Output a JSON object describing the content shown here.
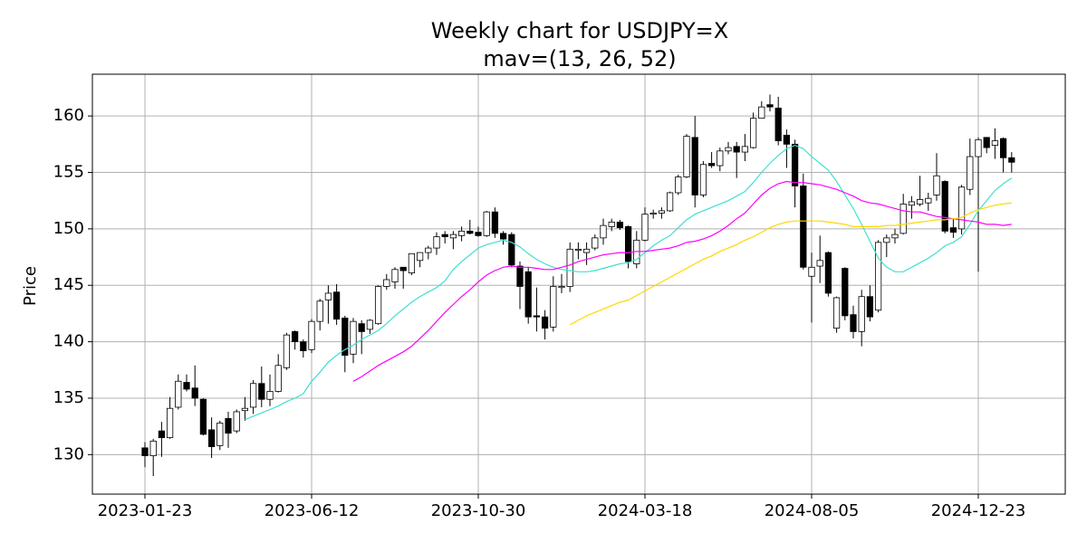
{
  "chart_data": {
    "type": "candlestick",
    "title": "Weekly chart for USDJPY=X",
    "subtitle": "mav=(13, 26, 52)",
    "y_label": "Price",
    "grid": true,
    "ylim": [
      126.5,
      163.7
    ],
    "yticks": [
      130,
      135,
      140,
      145,
      150,
      155,
      160
    ],
    "up_color": "#ffffff",
    "down_color": "#000000",
    "edge_color": "#000000",
    "categories": [
      "2023-01-23",
      null,
      null,
      null,
      null,
      null,
      null,
      null,
      null,
      null,
      null,
      null,
      null,
      null,
      null,
      null,
      null,
      null,
      null,
      null,
      "2023-06-12",
      null,
      null,
      null,
      null,
      null,
      null,
      null,
      null,
      null,
      null,
      null,
      null,
      null,
      null,
      null,
      null,
      null,
      null,
      null,
      "2023-10-30",
      null,
      null,
      null,
      null,
      null,
      null,
      null,
      null,
      null,
      null,
      null,
      null,
      null,
      null,
      null,
      null,
      null,
      null,
      null,
      "2024-03-18",
      null,
      null,
      null,
      null,
      null,
      null,
      null,
      null,
      null,
      null,
      null,
      null,
      null,
      null,
      null,
      null,
      null,
      null,
      null,
      "2024-08-05",
      null,
      null,
      null,
      null,
      null,
      null,
      null,
      null,
      null,
      null,
      null,
      null,
      null,
      null,
      null,
      null,
      null,
      null,
      null,
      "2024-12-23",
      null,
      null,
      null,
      null
    ],
    "open": [
      130.6,
      129.9,
      132.1,
      131.5,
      134.2,
      136.4,
      135.9,
      134.9,
      132.2,
      130.8,
      133.2,
      132.1,
      133.9,
      134.2,
      136.3,
      134.9,
      135.6,
      137.7,
      140.9,
      140.0,
      139.3,
      141.8,
      143.7,
      144.4,
      142.1,
      138.9,
      141.6,
      141.1,
      141.6,
      144.9,
      145.3,
      146.6,
      146.1,
      147.2,
      147.9,
      148.3,
      149.5,
      149.2,
      149.4,
      149.8,
      149.7,
      149.4,
      151.5,
      149.6,
      149.5,
      146.7,
      146.2,
      142.3,
      142.2,
      141.3,
      144.8,
      144.9,
      148.1,
      147.9,
      148.3,
      149.2,
      150.2,
      150.6,
      150.2,
      146.9,
      149.0,
      151.3,
      151.4,
      151.6,
      153.2,
      154.6,
      158.1,
      153.0,
      155.8,
      155.6,
      156.9,
      157.3,
      156.8,
      157.2,
      159.8,
      161.0,
      160.7,
      158.3,
      157.5,
      153.8,
      145.8,
      146.7,
      147.9,
      141.2,
      146.5,
      142.4,
      140.9,
      144.0,
      142.8,
      148.8,
      149.2,
      149.6,
      152.1,
      152.2,
      152.3,
      153.0,
      154.2,
      150.1,
      150.0,
      153.5,
      156.4,
      158.1,
      157.4,
      158.0,
      156.3
    ],
    "high": [
      131.1,
      131.4,
      132.9,
      135.1,
      137.1,
      137.1,
      137.9,
      135.0,
      133.3,
      133.0,
      133.8,
      134.0,
      135.1,
      136.6,
      137.8,
      137.1,
      138.9,
      140.8,
      141.0,
      140.2,
      142.0,
      143.8,
      145.0,
      145.1,
      142.3,
      142.1,
      141.9,
      142.0,
      145.0,
      146.0,
      146.6,
      146.6,
      147.8,
      147.9,
      148.5,
      149.7,
      149.8,
      149.8,
      150.2,
      150.8,
      150.2,
      151.6,
      151.9,
      149.8,
      149.7,
      147.1,
      146.6,
      144.8,
      142.8,
      145.8,
      146.0,
      148.8,
      148.8,
      148.8,
      149.5,
      150.9,
      150.9,
      150.8,
      150.3,
      149.8,
      151.9,
      151.7,
      151.9,
      153.3,
      154.8,
      158.4,
      160.0,
      156.0,
      156.8,
      157.2,
      157.7,
      157.7,
      158.4,
      160.3,
      161.3,
      161.9,
      161.7,
      158.8,
      157.9,
      154.9,
      147.9,
      149.4,
      148.0,
      144.0,
      146.6,
      143.2,
      144.6,
      145.0,
      149.0,
      149.5,
      150.0,
      153.1,
      152.9,
      154.7,
      153.2,
      156.7,
      154.3,
      150.9,
      153.9,
      158.0,
      158.1,
      158.1,
      158.9,
      158.1,
      156.8
    ],
    "low": [
      128.9,
      128.1,
      129.8,
      131.4,
      134.0,
      135.6,
      134.3,
      131.7,
      129.7,
      130.4,
      130.6,
      131.9,
      133.0,
      133.6,
      134.2,
      134.3,
      135.5,
      137.5,
      139.3,
      138.6,
      139.0,
      141.0,
      141.6,
      141.5,
      137.3,
      138.1,
      138.9,
      140.7,
      141.5,
      144.6,
      144.7,
      144.7,
      145.9,
      146.6,
      147.3,
      147.7,
      148.7,
      148.2,
      148.9,
      149.5,
      149.3,
      149.3,
      149.2,
      148.6,
      146.6,
      142.9,
      141.6,
      140.9,
      140.2,
      140.9,
      144.3,
      144.4,
      147.3,
      146.8,
      148.1,
      148.6,
      149.8,
      149.9,
      146.5,
      146.5,
      148.9,
      150.9,
      150.9,
      151.5,
      153.0,
      154.5,
      151.9,
      152.8,
      155.4,
      155.1,
      156.6,
      154.5,
      156.0,
      157.1,
      159.8,
      160.4,
      157.4,
      155.4,
      151.9,
      146.4,
      141.7,
      145.2,
      144.0,
      140.8,
      141.9,
      140.3,
      139.6,
      141.8,
      142.6,
      147.5,
      148.7,
      149.5,
      150.9,
      152.0,
      151.6,
      152.5,
      149.6,
      149.2,
      149.5,
      153.0,
      146.2,
      156.7,
      156.2,
      155.0,
      155.0
    ],
    "close": [
      129.9,
      131.2,
      131.5,
      134.1,
      136.5,
      135.8,
      135.0,
      131.8,
      130.7,
      132.8,
      131.9,
      133.8,
      134.1,
      136.3,
      134.9,
      135.6,
      137.9,
      140.6,
      140.0,
      139.2,
      141.8,
      143.6,
      144.3,
      142.0,
      138.8,
      141.8,
      140.9,
      141.9,
      144.9,
      145.5,
      146.4,
      146.3,
      147.8,
      147.9,
      148.3,
      149.3,
      149.3,
      149.5,
      149.8,
      149.6,
      149.4,
      151.5,
      149.6,
      149.1,
      146.8,
      144.9,
      142.2,
      142.2,
      141.2,
      144.9,
      144.9,
      148.2,
      148.2,
      148.2,
      149.2,
      150.3,
      150.6,
      150.1,
      147.1,
      149.0,
      151.3,
      151.4,
      151.6,
      153.2,
      154.6,
      158.2,
      153.0,
      155.7,
      155.6,
      156.9,
      157.2,
      156.8,
      157.3,
      159.8,
      160.8,
      160.8,
      157.8,
      157.5,
      153.8,
      146.6,
      146.6,
      147.2,
      144.3,
      143.9,
      142.3,
      140.9,
      144.0,
      142.2,
      148.8,
      149.2,
      149.5,
      152.2,
      152.4,
      152.6,
      152.7,
      154.7,
      149.8,
      149.7,
      153.7,
      156.4,
      157.9,
      157.2,
      157.8,
      156.3,
      155.9
    ],
    "series": [
      {
        "color": "#40e0d0",
        "values": [
          null,
          null,
          null,
          null,
          null,
          null,
          null,
          null,
          null,
          null,
          null,
          null,
          133.1,
          133.4,
          133.7,
          134.0,
          134.3,
          134.7,
          135.0,
          135.4,
          136.5,
          137.3,
          138.2,
          138.8,
          139.3,
          139.7,
          140.2,
          140.6,
          141.0,
          141.6,
          142.3,
          142.9,
          143.5,
          144.0,
          144.4,
          144.8,
          145.4,
          146.4,
          147.1,
          147.7,
          148.3,
          148.6,
          148.8,
          149.0,
          148.8,
          148.4,
          147.8,
          147.3,
          146.9,
          146.6,
          146.4,
          146.3,
          146.2,
          146.2,
          146.3,
          146.5,
          146.7,
          146.9,
          147.0,
          147.3,
          147.9,
          148.5,
          149.0,
          149.4,
          150.1,
          150.8,
          151.3,
          151.6,
          151.9,
          152.2,
          152.5,
          152.9,
          153.3,
          154.1,
          155.0,
          155.8,
          156.5,
          157.1,
          157.4,
          157.1,
          156.4,
          155.8,
          155.2,
          154.2,
          153.0,
          151.8,
          150.4,
          148.9,
          147.4,
          146.6,
          146.2,
          146.2,
          146.6,
          147.0,
          147.4,
          147.9,
          148.5,
          148.8,
          149.3,
          150.4,
          151.6,
          152.5,
          153.4,
          154.0,
          154.5
        ]
      },
      {
        "color": "#ff00ff",
        "values": [
          null,
          null,
          null,
          null,
          null,
          null,
          null,
          null,
          null,
          null,
          null,
          null,
          null,
          null,
          null,
          null,
          null,
          null,
          null,
          null,
          null,
          null,
          null,
          null,
          null,
          136.5,
          136.9,
          137.4,
          137.9,
          138.3,
          138.7,
          139.1,
          139.6,
          140.3,
          141.0,
          141.8,
          142.6,
          143.3,
          144.0,
          144.6,
          145.3,
          145.9,
          146.3,
          146.6,
          146.7,
          146.6,
          146.6,
          146.5,
          146.4,
          146.4,
          146.6,
          146.8,
          147.1,
          147.3,
          147.5,
          147.7,
          147.8,
          147.9,
          147.9,
          148.0,
          148.0,
          148.1,
          148.2,
          148.3,
          148.5,
          148.8,
          148.9,
          149.1,
          149.4,
          149.8,
          150.3,
          150.9,
          151.4,
          152.2,
          153.0,
          153.6,
          154.0,
          154.2,
          154.1,
          154.1,
          154.0,
          153.9,
          153.7,
          153.5,
          153.2,
          152.9,
          152.5,
          152.3,
          152.2,
          152.0,
          151.8,
          151.6,
          151.5,
          151.5,
          151.3,
          151.1,
          151.0,
          150.9,
          150.8,
          150.7,
          150.6,
          150.4,
          150.4,
          150.3,
          150.4
        ]
      },
      {
        "color": "#ffd700",
        "values": [
          null,
          null,
          null,
          null,
          null,
          null,
          null,
          null,
          null,
          null,
          null,
          null,
          null,
          null,
          null,
          null,
          null,
          null,
          null,
          null,
          null,
          null,
          null,
          null,
          null,
          null,
          null,
          null,
          null,
          null,
          null,
          null,
          null,
          null,
          null,
          null,
          null,
          null,
          null,
          null,
          null,
          null,
          null,
          null,
          null,
          null,
          null,
          null,
          null,
          null,
          null,
          141.5,
          141.9,
          142.3,
          142.6,
          142.9,
          143.2,
          143.5,
          143.7,
          144.1,
          144.5,
          144.9,
          145.3,
          145.7,
          146.1,
          146.5,
          146.9,
          147.3,
          147.6,
          148.0,
          148.3,
          148.6,
          149.0,
          149.3,
          149.7,
          150.1,
          150.4,
          150.6,
          150.7,
          150.7,
          150.7,
          150.7,
          150.6,
          150.5,
          150.4,
          150.2,
          150.2,
          150.2,
          150.2,
          150.3,
          150.3,
          150.4,
          150.5,
          150.6,
          150.7,
          150.8,
          150.8,
          150.9,
          151.0,
          151.4,
          151.7,
          151.9,
          152.1,
          152.2,
          152.3
        ]
      }
    ]
  }
}
